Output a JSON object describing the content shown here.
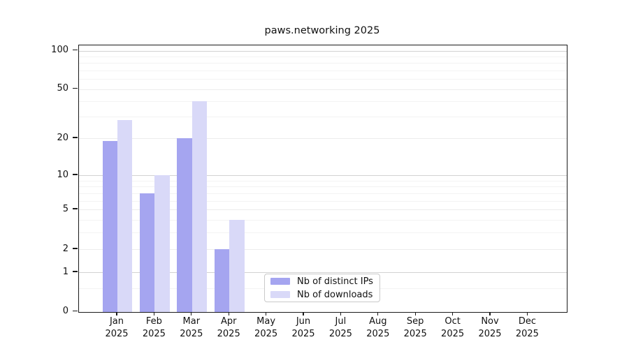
{
  "chart_data": {
    "type": "bar",
    "title": "paws.networking 2025",
    "categories": [
      "Jan 2025",
      "Feb 2025",
      "Mar 2025",
      "Apr 2025",
      "May 2025",
      "Jun 2025",
      "Jul 2025",
      "Aug 2025",
      "Sep 2025",
      "Oct 2025",
      "Nov 2025",
      "Dec 2025"
    ],
    "x_tick_months": [
      "Jan",
      "Feb",
      "Mar",
      "Apr",
      "May",
      "Jun",
      "Jul",
      "Aug",
      "Sep",
      "Oct",
      "Nov",
      "Dec"
    ],
    "x_tick_year": "2025",
    "series": [
      {
        "name": "Nb of distinct IPs",
        "color": "#a5a5f0",
        "values": [
          19,
          7,
          20,
          2,
          0,
          0,
          0,
          0,
          0,
          0,
          0,
          0
        ]
      },
      {
        "name": "Nb of downloads",
        "color": "#d9d9f8",
        "values": [
          28,
          10,
          40,
          4,
          0,
          0,
          0,
          0,
          0,
          0,
          0,
          0
        ]
      }
    ],
    "ylabel": "",
    "xlabel": "",
    "y_scale": "log1p",
    "y_ticks": [
      0,
      1,
      2,
      5,
      10,
      20,
      50,
      100
    ],
    "ylim": [
      0,
      110
    ],
    "grid": true,
    "legend_position": "lower center",
    "gridline_colors": {
      "major": "#d2d2d2",
      "medium": "#ececec",
      "minor": "#f3f3f3"
    },
    "grid_major_values": [
      1,
      10,
      100
    ],
    "grid_medium_values": [
      2,
      5,
      20,
      50
    ],
    "grid_minor_values": [
      0.5,
      3,
      4,
      6,
      7,
      8,
      9,
      30,
      40,
      60,
      70,
      80,
      90
    ]
  },
  "legend": {
    "items": [
      {
        "label": "Nb of distinct IPs",
        "color": "#a5a5f0"
      },
      {
        "label": "Nb of downloads",
        "color": "#d9d9f8"
      }
    ]
  }
}
